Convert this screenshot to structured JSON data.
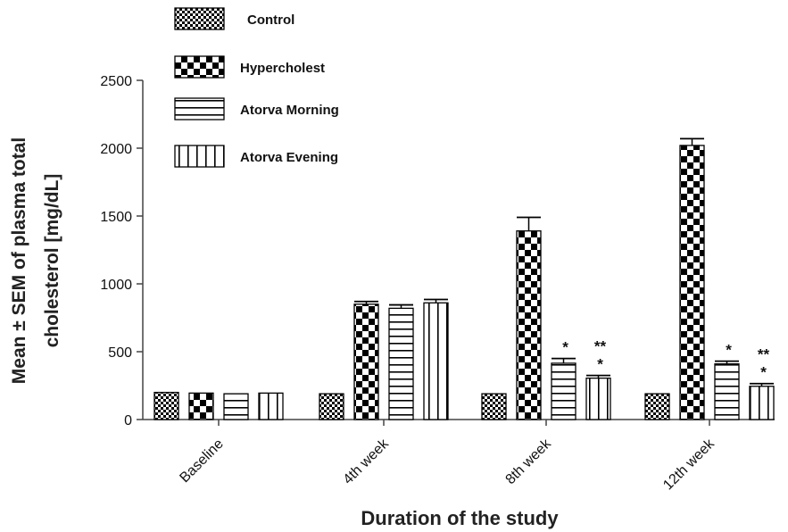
{
  "chart_data": {
    "type": "bar",
    "title": "",
    "xlabel": "Duration of the study",
    "ylabel_lines": [
      "Mean ± SEM of plasma total",
      "cholesterol [mg/dL]"
    ],
    "ylim": [
      0,
      2500
    ],
    "yticks": [
      "0",
      "500",
      "1000",
      "1500",
      "2000",
      "2500"
    ],
    "categories": [
      "Baseline",
      "4th week",
      "8th week",
      "12th week"
    ],
    "series": [
      {
        "name": "Control",
        "pattern": "small-checker",
        "values": [
          200,
          190,
          190,
          190
        ],
        "errors": [
          0,
          0,
          0,
          0
        ],
        "significance": [
          "",
          "",
          "",
          ""
        ]
      },
      {
        "name": "Hypercholest",
        "pattern": "large-checker",
        "values": [
          195,
          850,
          1390,
          2020
        ],
        "errors": [
          0,
          20,
          100,
          50
        ],
        "significance": [
          "",
          "",
          "",
          ""
        ]
      },
      {
        "name": "Atorva Morning",
        "pattern": "horizontal-stripes",
        "values": [
          190,
          820,
          415,
          410
        ],
        "errors": [
          0,
          25,
          35,
          20
        ],
        "significance": [
          "",
          "",
          "*",
          "*"
        ]
      },
      {
        "name": "Atorva Evening",
        "pattern": "vertical-stripes",
        "values": [
          195,
          860,
          305,
          245
        ],
        "errors": [
          0,
          25,
          20,
          20
        ],
        "significance": [
          "",
          "",
          "**|*",
          "**|*"
        ]
      }
    ],
    "legend": {
      "position": "top-left"
    },
    "grid": false,
    "colors": {
      "ink": "#000000",
      "background": "#ffffff",
      "axis": "#444444"
    }
  }
}
